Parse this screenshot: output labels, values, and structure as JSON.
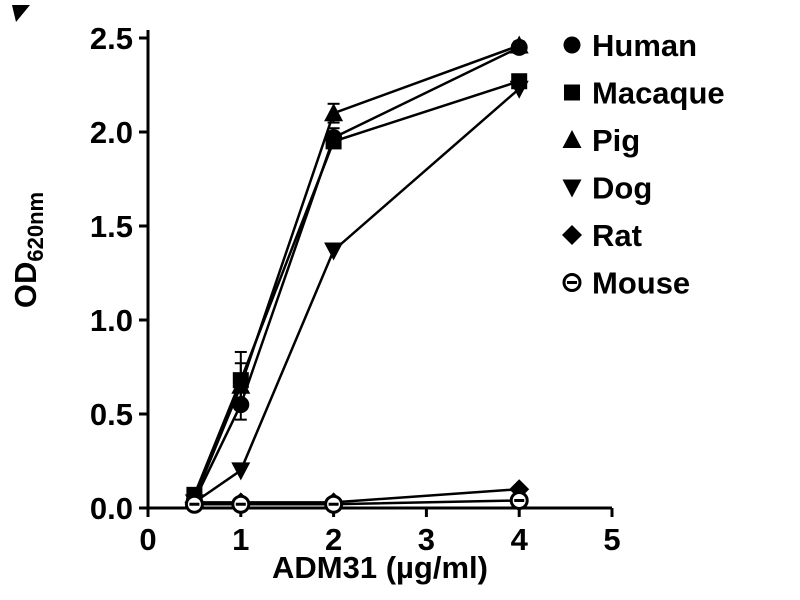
{
  "figure": {
    "background": "#ffffff",
    "ink": "#000000"
  },
  "chart_data": {
    "type": "line",
    "title": "",
    "xlabel": "ADM31 (µg/ml)",
    "ylabel": "OD",
    "ylabel_subscript": "620nm",
    "xlim": [
      0,
      5
    ],
    "ylim": [
      0,
      2.5
    ],
    "xticks": [
      0,
      1,
      2,
      3,
      4,
      5
    ],
    "yticks": [
      0,
      0.5,
      1.0,
      1.5,
      2.0,
      2.5
    ],
    "grid": false,
    "legend_position": "upper-right",
    "x": [
      0.5,
      1,
      2,
      4
    ],
    "series": [
      {
        "name": "Human",
        "marker": "circle-filled",
        "values": [
          0.04,
          0.55,
          1.97,
          2.45
        ],
        "errors": [
          0,
          0.08,
          0.05,
          0.03
        ]
      },
      {
        "name": "Macaque",
        "marker": "square-filled",
        "values": [
          0.07,
          0.68,
          1.95,
          2.27
        ],
        "errors": [
          0,
          0.15,
          0,
          0
        ]
      },
      {
        "name": "Pig",
        "marker": "triangle-up-filled",
        "values": [
          0.05,
          0.65,
          2.1,
          2.46
        ],
        "errors": [
          0,
          0.12,
          0.05,
          0
        ]
      },
      {
        "name": "Dog",
        "marker": "triangle-down-filled",
        "values": [
          0.03,
          0.2,
          1.37,
          2.23
        ],
        "errors": [
          0,
          0,
          0,
          0
        ]
      },
      {
        "name": "Rat",
        "marker": "diamond-filled",
        "values": [
          0.03,
          0.03,
          0.03,
          0.1
        ],
        "errors": [
          0,
          0,
          0,
          0
        ]
      },
      {
        "name": "Mouse",
        "marker": "circle-open-dash",
        "values": [
          0.02,
          0.02,
          0.02,
          0.04
        ],
        "errors": [
          0,
          0,
          0,
          0
        ]
      }
    ]
  }
}
